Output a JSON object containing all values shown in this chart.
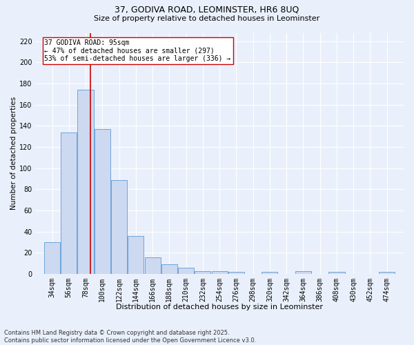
{
  "title1": "37, GODIVA ROAD, LEOMINSTER, HR6 8UQ",
  "title2": "Size of property relative to detached houses in Leominster",
  "xlabel": "Distribution of detached houses by size in Leominster",
  "ylabel": "Number of detached properties",
  "bar_values": [
    30,
    134,
    174,
    137,
    89,
    36,
    16,
    9,
    6,
    3,
    3,
    2,
    0,
    2,
    0,
    3,
    0,
    2,
    0,
    0,
    2
  ],
  "bin_labels": [
    "34sqm",
    "56sqm",
    "78sqm",
    "100sqm",
    "122sqm",
    "144sqm",
    "166sqm",
    "188sqm",
    "210sqm",
    "232sqm",
    "254sqm",
    "276sqm",
    "298sqm",
    "320sqm",
    "342sqm",
    "364sqm",
    "386sqm",
    "408sqm",
    "430sqm",
    "452sqm",
    "474sqm"
  ],
  "bin_edges": [
    34,
    56,
    78,
    100,
    122,
    144,
    166,
    188,
    210,
    232,
    254,
    276,
    298,
    320,
    342,
    364,
    386,
    408,
    430,
    452,
    474,
    496
  ],
  "bar_color": "#ccd9f0",
  "bar_edgecolor": "#5b9bd5",
  "vline_x": 95,
  "vline_color": "#cc0000",
  "annotation_line1": "37 GODIVA ROAD: 95sqm",
  "annotation_line2": "← 47% of detached houses are smaller (297)",
  "annotation_line3": "53% of semi-detached houses are larger (336) →",
  "annotation_box_color": "#ffffff",
  "annotation_box_edgecolor": "#cc0000",
  "ylim": [
    0,
    228
  ],
  "yticks": [
    0,
    20,
    40,
    60,
    80,
    100,
    120,
    140,
    160,
    180,
    200,
    220
  ],
  "background_color": "#eaf0fb",
  "grid_color": "#ffffff",
  "footer_line1": "Contains HM Land Registry data © Crown copyright and database right 2025.",
  "footer_line2": "Contains public sector information licensed under the Open Government Licence v3.0.",
  "title1_fontsize": 9,
  "title2_fontsize": 8,
  "xlabel_fontsize": 8,
  "ylabel_fontsize": 7.5,
  "tick_fontsize": 7,
  "annotation_fontsize": 7,
  "footer_fontsize": 6
}
